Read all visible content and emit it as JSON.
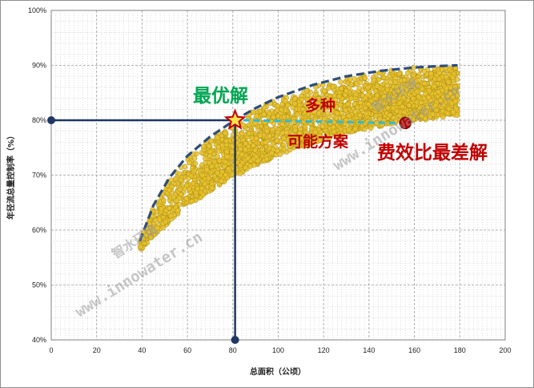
{
  "chart_data": {
    "type": "scatter",
    "xlabel": "总面积（公顷）",
    "ylabel": "年径流总量控制率（%）",
    "xlim": [
      0,
      200
    ],
    "ylim": [
      40,
      100
    ],
    "x_ticks": [
      "0",
      "20",
      "40",
      "60",
      "80",
      "100",
      "120",
      "140",
      "160",
      "180",
      "200"
    ],
    "y_ticks": [
      "40%",
      "50%",
      "60%",
      "70%",
      "80%",
      "90%",
      "100%"
    ],
    "grid": true,
    "colors": {
      "points": "#e8c22e",
      "point_edge": "#a88a10",
      "frontier": "#2e4d7a",
      "guide": "#1f3864",
      "dash": "#2fb9d6",
      "optimal": "#00a651",
      "worst": "#c00000",
      "mid_label": "#c00000"
    },
    "frontier": {
      "x": [
        39,
        45,
        52,
        60,
        70,
        80,
        90,
        100,
        115,
        130,
        145,
        160,
        172,
        179
      ],
      "y": [
        58,
        64.5,
        69.5,
        73.5,
        77,
        79.8,
        82.2,
        84.2,
        86.4,
        88,
        89,
        89.6,
        89.9,
        90
      ]
    },
    "optimal_point": {
      "x": 81,
      "y": 80
    },
    "worst_point": {
      "x": 156,
      "y": 79.5
    },
    "annotations": {
      "optimal": "最优解",
      "feasible_top": "多种",
      "feasible_bottom": "可能方案",
      "worst": "费效比最差解"
    },
    "watermark": {
      "brand": "智水环境",
      "url": "www.innowater.cn"
    }
  }
}
